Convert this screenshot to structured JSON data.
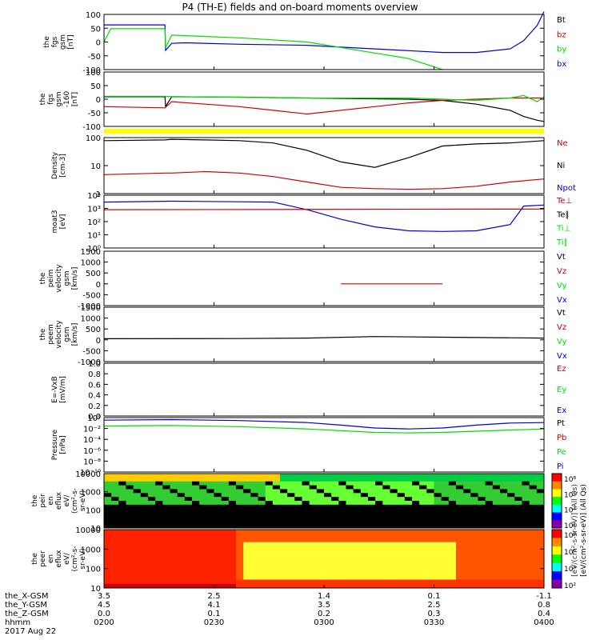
{
  "title": "P4 (TH-E) fields and on-board moments overview",
  "colors": {
    "black": "#000000",
    "red": "#cc0000",
    "green": "#00dd00",
    "blue": "#0000cc",
    "yellow": "#ffff00"
  },
  "chart_data": [
    {
      "id": "fgs",
      "type": "line",
      "ylabel": [
        "the",
        "fgs",
        "gsm",
        "[nT]"
      ],
      "ylim": [
        -100,
        100
      ],
      "yticks": [
        "100",
        "50",
        "0",
        "-50",
        "-100"
      ],
      "legend": [
        {
          "name": "Bt",
          "color": "black"
        },
        {
          "name": "bz",
          "color": "red"
        },
        {
          "name": "by",
          "color": "green"
        },
        {
          "name": "bx",
          "color": "blue"
        }
      ],
      "series": [
        {
          "name": "bx",
          "color": "blue",
          "x": [
            0,
            4,
            9,
            9.1,
            10,
            12,
            20,
            30,
            40,
            50,
            55,
            60,
            62,
            64,
            65
          ],
          "y": [
            62,
            62,
            62,
            -30,
            -5,
            -3,
            -8,
            -12,
            -25,
            -38,
            -38,
            -25,
            5,
            60,
            110
          ]
        },
        {
          "name": "by",
          "color": "green",
          "x": [
            0,
            1,
            9,
            9.1,
            10,
            20,
            30,
            40,
            45,
            50
          ],
          "y": [
            0,
            48,
            48,
            -20,
            25,
            15,
            0,
            -40,
            -60,
            -100
          ]
        }
      ]
    },
    {
      "id": "fgs2",
      "type": "line",
      "ylabel": [
        "the",
        "fgs",
        "gsm",
        "-160",
        "[nT]"
      ],
      "ylim": [
        -120,
        100
      ],
      "yticks": [
        "100",
        "50",
        "0",
        "-50",
        "-100"
      ],
      "legend": [],
      "series": [
        {
          "name": "Bt",
          "color": "black",
          "x": [
            0,
            9,
            9.1,
            10,
            20,
            30,
            45,
            50,
            55,
            60,
            62,
            64,
            65
          ],
          "y": [
            0,
            0,
            -40,
            0,
            -2,
            -5,
            -10,
            -15,
            -30,
            -55,
            -80,
            -95,
            -100
          ]
        },
        {
          "name": "bz",
          "color": "red",
          "x": [
            0,
            9,
            10,
            15,
            20,
            25,
            30,
            40,
            45,
            50,
            55,
            60,
            65
          ],
          "y": [
            -40,
            -45,
            -20,
            -30,
            -40,
            -55,
            -70,
            -40,
            -25,
            -15,
            -10,
            -5,
            -5
          ]
        },
        {
          "name": "by",
          "color": "green",
          "x": [
            0,
            9,
            10,
            20,
            30,
            40,
            45,
            50,
            55,
            60,
            62,
            64,
            65
          ],
          "y": [
            2,
            2,
            0,
            -2,
            -5,
            -5,
            -5,
            -10,
            -15,
            -5,
            5,
            -20,
            0
          ]
        }
      ]
    },
    {
      "id": "density",
      "type": "line",
      "ylabel": [
        "Density",
        "[cm-3]"
      ],
      "ylim": [
        1,
        200
      ],
      "log": true,
      "yticks": [
        "100",
        "10",
        "1"
      ],
      "legend": [
        {
          "name": "Ne",
          "color": "red"
        },
        {
          "name": "Ni",
          "color": "black"
        },
        {
          "name": "Npot",
          "color": "blue"
        }
      ],
      "series": [
        {
          "name": "Ni",
          "color": "black",
          "x": [
            0,
            9,
            10,
            15,
            20,
            25,
            30,
            35,
            40,
            45,
            50,
            55,
            60,
            65
          ],
          "y": [
            150,
            160,
            170,
            160,
            150,
            120,
            60,
            20,
            12,
            30,
            90,
            110,
            120,
            150
          ]
        },
        {
          "name": "Ne",
          "color": "red",
          "x": [
            0,
            9,
            10,
            15,
            20,
            25,
            30,
            35,
            40,
            45,
            50,
            55,
            60,
            65
          ],
          "y": [
            6,
            7,
            7,
            8,
            7,
            5,
            3,
            1.8,
            1.6,
            1.5,
            1.6,
            2,
            3,
            4
          ]
        }
      ]
    },
    {
      "id": "temps",
      "type": "line",
      "ylabel": [
        "moat3",
        "[eV]"
      ],
      "ylim": [
        1,
        10000
      ],
      "log": true,
      "yticks": [
        "10⁴",
        "10³",
        "10²",
        "10¹",
        "10⁰"
      ],
      "legend": [
        {
          "name": "Te⊥",
          "color": "red"
        },
        {
          "name": "Te∥",
          "color": "black"
        },
        {
          "name": "Ti⊥",
          "color": "green"
        },
        {
          "name": "Ti∥",
          "color": "green"
        }
      ],
      "series": [
        {
          "name": "Ti⊥",
          "color": "blue",
          "x": [
            0,
            10,
            20,
            25,
            30,
            35,
            40,
            45,
            50,
            55,
            60,
            62,
            65
          ],
          "y": [
            3000,
            3500,
            3200,
            3000,
            800,
            150,
            40,
            20,
            18,
            20,
            60,
            1500,
            1800
          ]
        },
        {
          "name": "Te∥",
          "color": "red",
          "x": [
            0,
            65
          ],
          "y": [
            800,
            900
          ]
        }
      ]
    },
    {
      "id": "peim",
      "type": "line",
      "ylabel": [
        "the",
        "peim",
        "velocity",
        "gsm",
        "[km/s]"
      ],
      "ylim": [
        -1000,
        1500
      ],
      "yticks": [
        "1500",
        "1000",
        "500",
        "0",
        "-500",
        "-1000"
      ],
      "legend": [
        {
          "name": "Vt",
          "color": "black"
        },
        {
          "name": "Vz",
          "color": "red"
        },
        {
          "name": "Vy",
          "color": "green"
        },
        {
          "name": "Vx",
          "color": "blue"
        }
      ],
      "series": [
        {
          "name": "Vz",
          "color": "red",
          "x": [
            35,
            50
          ],
          "y": [
            0,
            0
          ]
        }
      ]
    },
    {
      "id": "peem",
      "type": "line",
      "ylabel": [
        "the",
        "peem",
        "velocity",
        "gsm",
        "[km/s]"
      ],
      "ylim": [
        -1000,
        1500
      ],
      "yticks": [
        "1500",
        "1000",
        "500",
        "0",
        "-500",
        "-1000"
      ],
      "legend": [
        {
          "name": "Vt",
          "color": "black"
        },
        {
          "name": "Vz",
          "color": "red"
        },
        {
          "name": "Vy",
          "color": "green"
        },
        {
          "name": "Vx",
          "color": "blue"
        }
      ],
      "series": [
        {
          "name": "Vt",
          "color": "black",
          "x": [
            0,
            20,
            30,
            40,
            50,
            65
          ],
          "y": [
            50,
            60,
            80,
            150,
            120,
            80
          ]
        }
      ]
    },
    {
      "id": "efield",
      "type": "line",
      "ylabel": [
        "E=-VxB",
        "[mV/m]"
      ],
      "ylim": [
        0,
        1
      ],
      "yticks": [
        "1.0",
        "0.8",
        "0.6",
        "0.4",
        "0.2",
        "0.0"
      ],
      "legend": [
        {
          "name": "Ez",
          "color": "red"
        },
        {
          "name": "Ey",
          "color": "green"
        },
        {
          "name": "Ex",
          "color": "blue"
        }
      ],
      "series": []
    },
    {
      "id": "pressure",
      "type": "line",
      "ylabel": [
        "Pressure",
        "[nPa]"
      ],
      "ylim": [
        1e-10,
        10
      ],
      "log": true,
      "yticks": [
        "10⁰",
        "10⁻²",
        "10⁻⁴",
        "10⁻⁶",
        "10⁻⁸",
        "10⁻¹⁰"
      ],
      "legend": [
        {
          "name": "Pt",
          "color": "black"
        },
        {
          "name": "Pb",
          "color": "red"
        },
        {
          "name": "Pe",
          "color": "green"
        },
        {
          "name": "Pi",
          "color": "blue"
        }
      ],
      "series": [
        {
          "name": "Pt",
          "color": "blue",
          "x": [
            0,
            10,
            20,
            30,
            35,
            40,
            45,
            50,
            55,
            60,
            65
          ],
          "y": [
            3,
            4,
            2.5,
            1,
            0.3,
            0.08,
            0.05,
            0.08,
            0.3,
            0.8,
            1
          ]
        },
        {
          "name": "Pe",
          "color": "green",
          "x": [
            0,
            10,
            20,
            30,
            40,
            45,
            50,
            60,
            65
          ],
          "y": [
            0.2,
            0.25,
            0.15,
            0.05,
            0.01,
            0.008,
            0.01,
            0.03,
            0.05
          ]
        }
      ]
    },
    {
      "id": "peir",
      "type": "heatmap",
      "ylabel": [
        "the",
        "peir",
        "en",
        "eflux",
        "eV/",
        "(cm²-s-",
        "sr-eV)"
      ],
      "ylim": [
        5,
        30000
      ],
      "log": true,
      "yticks": [
        "10000",
        "1000",
        "100",
        "10"
      ],
      "legend": []
    },
    {
      "id": "peer",
      "type": "heatmap",
      "ylabel": [
        "the",
        "peer",
        "en",
        "eflux",
        "eV/",
        "(cm²-s-",
        "sr-eV)"
      ],
      "ylim": [
        5,
        30000
      ],
      "log": true,
      "yticks": [
        "10000",
        "1000",
        "100",
        "10"
      ],
      "legend": []
    }
  ],
  "colorbar": {
    "ticks": [
      "10⁸",
      "10⁶",
      "10⁴",
      "10²",
      "10⁸",
      "10⁶",
      "10⁴",
      "10²"
    ],
    "label": "[eV/(cm²-s-sr-eV)] (All Qs)",
    "overlay_label": "[eV/(cm²-s-sr-eV)] (All Qs)"
  },
  "xaxis": {
    "rows": [
      {
        "label": "the_X-GSM",
        "values": [
          "3.5",
          "2.5",
          "1.4",
          "0.1",
          "-1.1"
        ]
      },
      {
        "label": "the_Y-GSM",
        "values": [
          "4.5",
          "4.1",
          "3.5",
          "2.5",
          "0.8"
        ]
      },
      {
        "label": "the_Z-GSM",
        "values": [
          "0.0",
          "0.1",
          "0.2",
          "0.3",
          "0.4"
        ]
      },
      {
        "label": "hhmm",
        "values": [
          "0200",
          "0230",
          "0300",
          "0330",
          "0400"
        ]
      }
    ],
    "date": "2017 Aug 22"
  },
  "legend_pos": "right"
}
